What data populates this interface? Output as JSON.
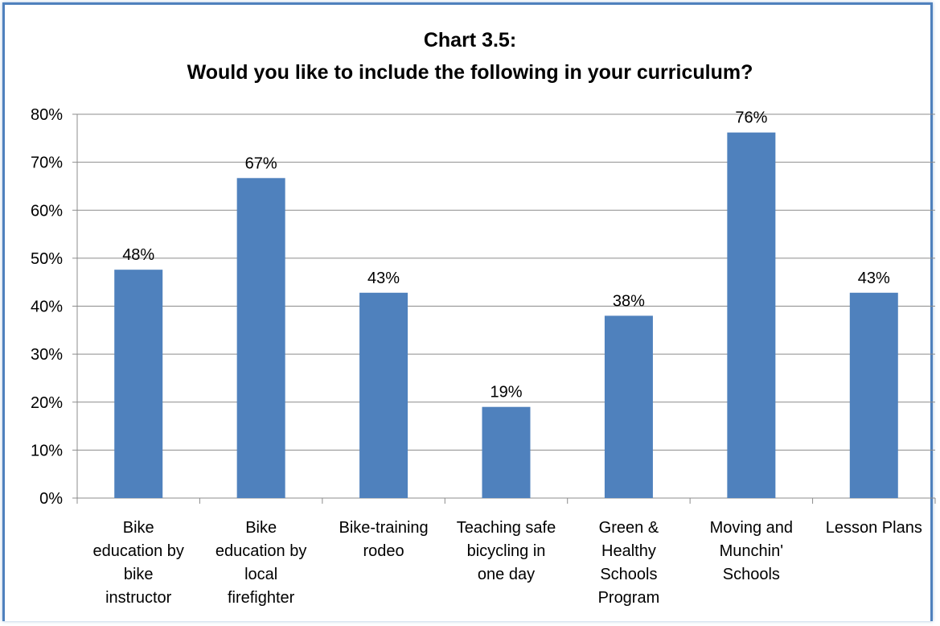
{
  "chart_data": {
    "type": "bar",
    "title": "Chart 3.5:",
    "subtitle": "Would you like to include the following in your curriculum?",
    "categories": [
      [
        "Bike",
        "education by",
        "bike",
        "instructor"
      ],
      [
        "Bike",
        "education by",
        "local",
        "firefighter"
      ],
      [
        "Bike-training",
        "rodeo"
      ],
      [
        "Teaching safe",
        "bicycling in",
        "one day"
      ],
      [
        "Green &",
        "Healthy",
        "Schools",
        "Program"
      ],
      [
        "Moving and",
        "Munchin'",
        "Schools"
      ],
      [
        "Lesson Plans"
      ]
    ],
    "values": [
      0.476,
      0.667,
      0.428,
      0.19,
      0.38,
      0.762,
      0.428
    ],
    "data_labels": [
      "48%",
      "67%",
      "43%",
      "19%",
      "38%",
      "76%",
      "43%"
    ],
    "yticks": [
      "0%",
      "10%",
      "20%",
      "30%",
      "40%",
      "50%",
      "60%",
      "70%",
      "80%"
    ],
    "ylim": [
      0,
      0.8
    ],
    "grid": true,
    "legend": false,
    "bar_color": "#4f81bd",
    "grid_color": "#8c8c8c",
    "frame_color": "#4f81bd"
  }
}
